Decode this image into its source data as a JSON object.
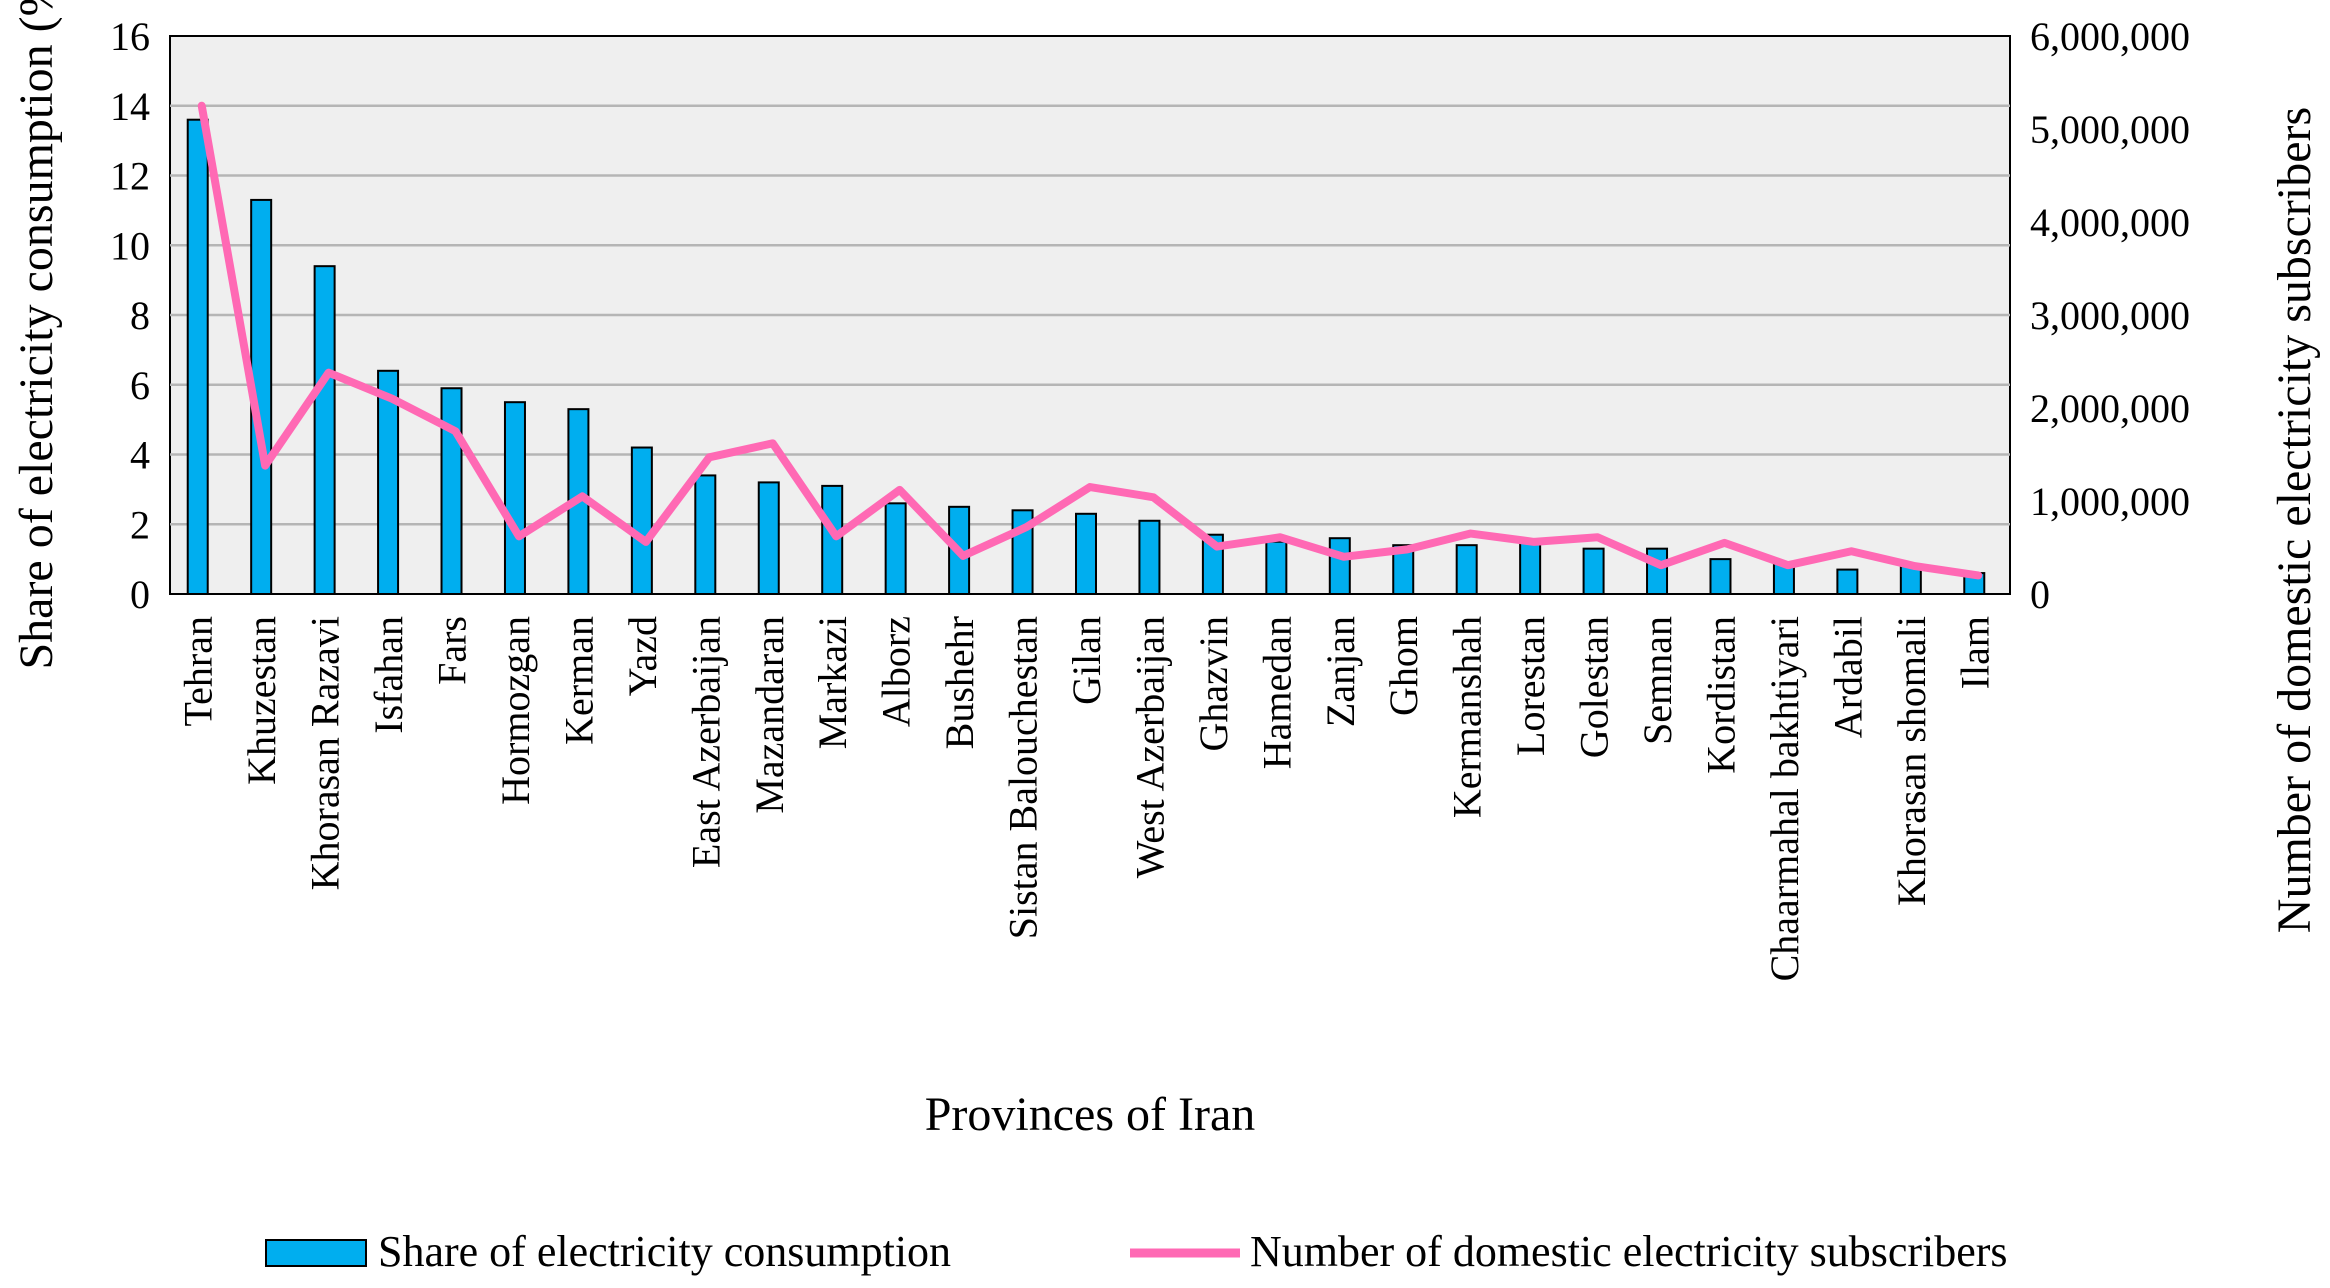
{
  "chart_data": {
    "type": "bar",
    "title": "",
    "xlabel": "Provinces of Iran",
    "ylabel": "Share of electricity consumption (%)",
    "y2label": "Number of domestic electricity  subscribers",
    "ylim": [
      0,
      16
    ],
    "y2lim": [
      0,
      6000000
    ],
    "yticks": [
      "0",
      "2",
      "4",
      "6",
      "8",
      "10",
      "12",
      "14",
      "16"
    ],
    "y2ticks": [
      "0",
      "1,000,000",
      "2,000,000",
      "3,000,000",
      "4,000,000",
      "5,000,000",
      "6,000,000"
    ],
    "grid": true,
    "legend_position": "bottom",
    "categories": [
      "Tehran",
      "Khuzestan",
      "Khorasan Razavi",
      "Isfahan",
      "Fars",
      "Hormozgan",
      "Kerman",
      "Yazd",
      "East Azerbaijan",
      "Mazandaran",
      "Markazi",
      "Alborz",
      "Bushehr",
      "Sistan Balouchestan",
      "Gilan",
      "West Azerbaijan",
      "Ghazvin",
      "Hamedan",
      "Zanjan",
      "Ghom",
      "Kermanshah",
      "Lorestan",
      "Golestan",
      "Semnan",
      "Kordistan",
      "Chaarmahal bakhtiyari",
      "Ardabil",
      "Khorasan shomali",
      "Ilam"
    ],
    "series": [
      {
        "name": "Share of electricity consumption",
        "type": "bar",
        "axis": "left",
        "color": "#00aeef",
        "values": [
          13.6,
          11.3,
          9.4,
          6.4,
          5.9,
          5.5,
          5.3,
          4.2,
          3.4,
          3.2,
          3.1,
          2.6,
          2.5,
          2.4,
          2.3,
          2.1,
          1.7,
          1.5,
          1.6,
          1.4,
          1.4,
          1.5,
          1.3,
          1.3,
          1.0,
          0.9,
          0.7,
          0.8,
          0.6
        ]
      },
      {
        "name": "Number of domestic electricity subscribers",
        "type": "line",
        "axis": "right",
        "color": "#ff69b4",
        "values": [
          5250000,
          1380000,
          2380000,
          2100000,
          1750000,
          620000,
          1050000,
          560000,
          1470000,
          1620000,
          620000,
          1120000,
          410000,
          720000,
          1150000,
          1040000,
          510000,
          610000,
          400000,
          480000,
          650000,
          560000,
          610000,
          310000,
          550000,
          310000,
          460000,
          300000,
          200000
        ]
      }
    ]
  }
}
